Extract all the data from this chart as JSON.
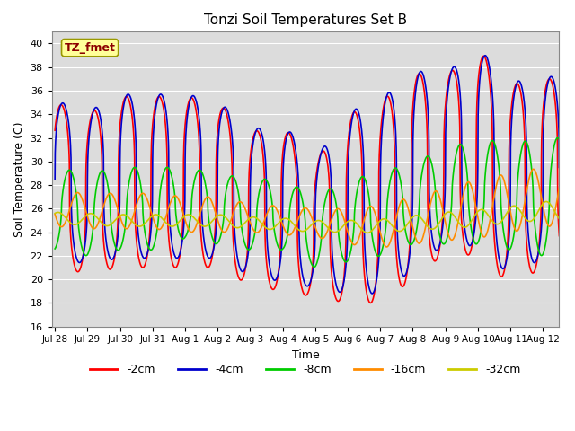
{
  "title": "Tonzi Soil Temperatures Set B",
  "xlabel": "Time",
  "ylabel": "Soil Temperature (C)",
  "annotation_label": "TZ_fmet",
  "annotation_color": "#8B0000",
  "annotation_bg": "#FFFF99",
  "annotation_border": "#999900",
  "ylim": [
    16,
    41
  ],
  "yticks": [
    16,
    18,
    20,
    22,
    24,
    26,
    28,
    30,
    32,
    34,
    36,
    38,
    40
  ],
  "bg_color": "#DCDCDC",
  "fig_bg": "#FFFFFF",
  "series_colors": [
    "#FF0000",
    "#0000CD",
    "#00CC00",
    "#FF8C00",
    "#CCCC00"
  ],
  "series_labels": [
    "-2cm",
    "-4cm",
    "-8cm",
    "-16cm",
    "-32cm"
  ],
  "line_width": 1.2,
  "xtick_labels": [
    "Jul 28",
    "Jul 29",
    "Jul 30",
    "Jul 31",
    "Aug 1",
    "Aug 2",
    "Aug 3",
    "Aug 4",
    "Aug 5",
    "Aug 6",
    "Aug 7",
    "Aug 8",
    "Aug 9",
    "Aug 10",
    "Aug 11",
    "Aug 12"
  ],
  "xtick_positions": [
    0,
    1,
    2,
    3,
    4,
    5,
    6,
    7,
    8,
    9,
    10,
    11,
    12,
    13,
    14,
    15
  ]
}
